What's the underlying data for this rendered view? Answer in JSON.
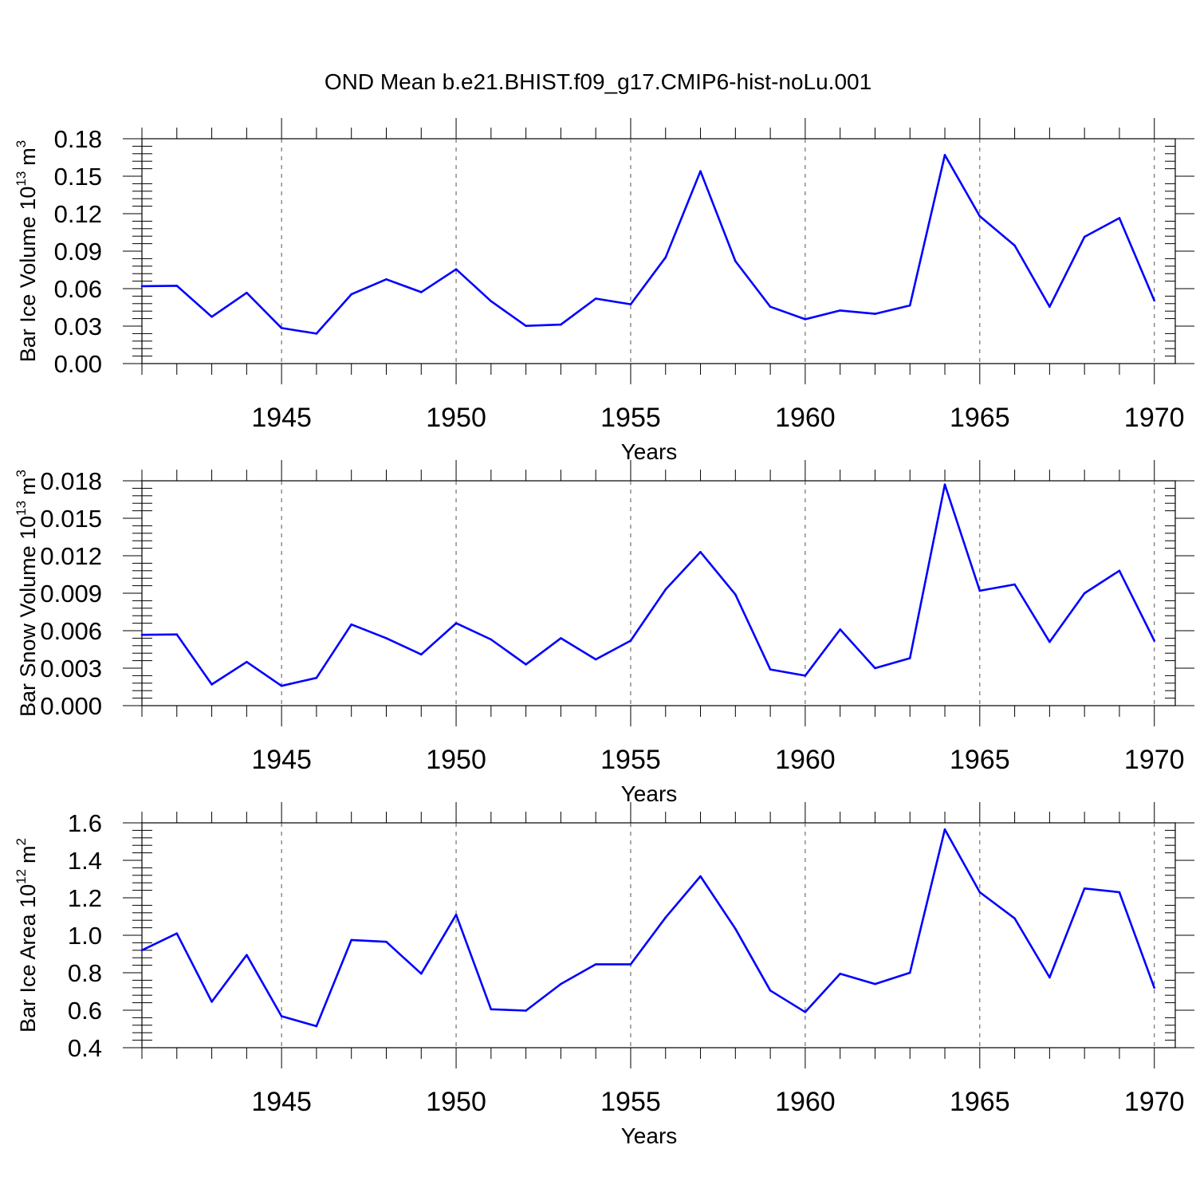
{
  "title": "OND Mean b.e21.BHIST.f09_g17.CMIP6-hist-noLu.001",
  "chart_data": [
    {
      "type": "line",
      "ylabel_main": "Bar Ice Volume 10",
      "ylabel_exp": "13",
      "ylabel_unit": "m",
      "ylabel_unit_exp": "3",
      "xlabel": "Years",
      "xlim": [
        1941,
        1970
      ],
      "ylim": [
        0.0,
        0.18
      ],
      "yticks": [
        "0.00",
        "0.03",
        "0.06",
        "0.09",
        "0.12",
        "0.15",
        "0.18"
      ],
      "ytick_values": [
        0.0,
        0.03,
        0.06,
        0.09,
        0.12,
        0.15,
        0.18
      ],
      "xticks": [
        "1945",
        "1950",
        "1955",
        "1960",
        "1965",
        "1970"
      ],
      "xtick_values": [
        1945,
        1950,
        1955,
        1960,
        1965,
        1970
      ],
      "x": [
        1941,
        1942,
        1943,
        1944,
        1945,
        1946,
        1947,
        1948,
        1949,
        1950,
        1951,
        1952,
        1953,
        1954,
        1955,
        1956,
        1957,
        1958,
        1959,
        1960,
        1961,
        1962,
        1963,
        1964,
        1965,
        1966,
        1967,
        1968,
        1969,
        1970
      ],
      "values": [
        0.062,
        0.0623,
        0.0375,
        0.0567,
        0.0285,
        0.024,
        0.0555,
        0.0675,
        0.0572,
        0.0755,
        0.05,
        0.0302,
        0.0312,
        0.052,
        0.0475,
        0.085,
        0.154,
        0.082,
        0.0455,
        0.0355,
        0.0425,
        0.0398,
        0.0465,
        0.167,
        0.118,
        0.0945,
        0.0455,
        0.1015,
        0.1165,
        0.0505
      ],
      "line_color": "#0000ff"
    },
    {
      "type": "line",
      "ylabel_main": "Bar Snow Volume 10",
      "ylabel_exp": "13",
      "ylabel_unit": "m",
      "ylabel_unit_exp": "3",
      "xlabel": "Years",
      "xlim": [
        1941,
        1970
      ],
      "ylim": [
        0.0,
        0.018
      ],
      "yticks": [
        "0.000",
        "0.003",
        "0.006",
        "0.009",
        "0.012",
        "0.015",
        "0.018"
      ],
      "ytick_values": [
        0.0,
        0.003,
        0.006,
        0.009,
        0.012,
        0.015,
        0.018
      ],
      "xticks": [
        "1945",
        "1950",
        "1955",
        "1960",
        "1965",
        "1970"
      ],
      "xtick_values": [
        1945,
        1950,
        1955,
        1960,
        1965,
        1970
      ],
      "x": [
        1941,
        1942,
        1943,
        1944,
        1945,
        1946,
        1947,
        1948,
        1949,
        1950,
        1951,
        1952,
        1953,
        1954,
        1955,
        1956,
        1957,
        1958,
        1959,
        1960,
        1961,
        1962,
        1963,
        1964,
        1965,
        1966,
        1967,
        1968,
        1969,
        1970
      ],
      "values": [
        0.00567,
        0.0057,
        0.0017,
        0.0035,
        0.00158,
        0.00222,
        0.0065,
        0.0054,
        0.0041,
        0.0066,
        0.0053,
        0.0033,
        0.0054,
        0.0037,
        0.0052,
        0.0093,
        0.0123,
        0.0089,
        0.0029,
        0.0024,
        0.0061,
        0.003,
        0.0038,
        0.0177,
        0.0092,
        0.0097,
        0.0051,
        0.009,
        0.0108,
        0.0052
      ],
      "line_color": "#0000ff"
    },
    {
      "type": "line",
      "ylabel_main": "Bar Ice Area 10",
      "ylabel_exp": "12",
      "ylabel_unit": "m",
      "ylabel_unit_exp": "2",
      "xlabel": "Years",
      "xlim": [
        1941,
        1970
      ],
      "ylim": [
        0.4,
        1.6
      ],
      "yticks": [
        "0.4",
        "0.6",
        "0.8",
        "1.0",
        "1.2",
        "1.4",
        "1.6"
      ],
      "ytick_values": [
        0.4,
        0.6,
        0.8,
        1.0,
        1.2,
        1.4,
        1.6
      ],
      "xticks": [
        "1945",
        "1950",
        "1955",
        "1960",
        "1965",
        "1970"
      ],
      "xtick_values": [
        1945,
        1950,
        1955,
        1960,
        1965,
        1970
      ],
      "x": [
        1941,
        1942,
        1943,
        1944,
        1945,
        1946,
        1947,
        1948,
        1949,
        1950,
        1951,
        1952,
        1953,
        1954,
        1955,
        1956,
        1957,
        1958,
        1959,
        1960,
        1961,
        1962,
        1963,
        1964,
        1965,
        1966,
        1967,
        1968,
        1969,
        1970
      ],
      "values": [
        0.92,
        1.01,
        0.645,
        0.895,
        0.568,
        0.515,
        0.975,
        0.965,
        0.795,
        1.11,
        0.605,
        0.598,
        0.74,
        0.845,
        0.845,
        1.095,
        1.315,
        1.035,
        0.705,
        0.59,
        0.795,
        0.74,
        0.8,
        1.565,
        1.23,
        1.09,
        0.775,
        1.25,
        1.23,
        0.72
      ],
      "line_color": "#0000ff"
    }
  ]
}
